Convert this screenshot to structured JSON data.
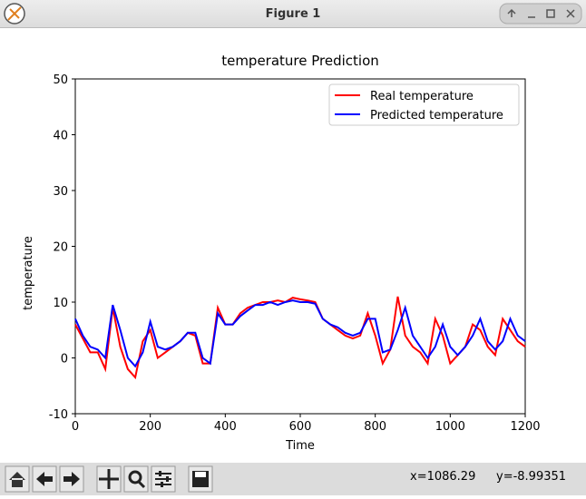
{
  "window": {
    "title": "Figure 1",
    "status_x": "x=1086.29",
    "status_y": "y=-8.99351"
  },
  "chart_data": {
    "type": "line",
    "title": "temperature Prediction",
    "x_label": "Time",
    "y_label": "temperature",
    "x": [
      0,
      20,
      40,
      60,
      80,
      100,
      120,
      140,
      160,
      180,
      200,
      220,
      240,
      260,
      280,
      300,
      320,
      340,
      360,
      380,
      400,
      420,
      440,
      460,
      480,
      500,
      520,
      540,
      560,
      580,
      600,
      620,
      640,
      660,
      680,
      700,
      720,
      740,
      760,
      780,
      800,
      820,
      840,
      860,
      880,
      900,
      920,
      940,
      960,
      980,
      1000,
      1020,
      1040,
      1060,
      1080,
      1100,
      1120,
      1140,
      1160,
      1180,
      1200
    ],
    "series": [
      {
        "name": "Real temperature",
        "color": "#ff0000",
        "values": [
          6,
          3.5,
          1,
          1,
          -2,
          9,
          2,
          -2,
          -3.5,
          3,
          5,
          0,
          1,
          2,
          3,
          4.5,
          4,
          -1,
          -1,
          9,
          6,
          6,
          8,
          9,
          9.5,
          10,
          10,
          10.3,
          10,
          10.8,
          10.5,
          10.3,
          10,
          7,
          6,
          5,
          4,
          3.5,
          4,
          8,
          4,
          -1,
          1.5,
          11,
          4,
          2,
          1,
          -1,
          7,
          4,
          -1,
          0.5,
          2,
          6,
          5,
          2,
          0.5,
          7,
          5,
          3,
          2
        ]
      },
      {
        "name": "Predicted temperature",
        "color": "#0000ff",
        "values": [
          7,
          4,
          2,
          1.5,
          0,
          9.5,
          5,
          0,
          -1.5,
          1,
          6.5,
          2,
          1.5,
          2,
          3,
          4.5,
          4.5,
          0,
          -1,
          8,
          6,
          6,
          7.5,
          8.5,
          9.5,
          9.5,
          10,
          9.5,
          10,
          10.3,
          10,
          10,
          9.7,
          7,
          6,
          5.5,
          4.5,
          4,
          4.5,
          7,
          7,
          1,
          1.5,
          5,
          9,
          4,
          2,
          0,
          2,
          6,
          2,
          0.5,
          2,
          4,
          7,
          3,
          1.5,
          3,
          7,
          4,
          3
        ]
      }
    ],
    "xlim": [
      0,
      1200
    ],
    "xticks": [
      0,
      200,
      400,
      600,
      800,
      1000,
      1200
    ],
    "ylim": [
      -10,
      50
    ],
    "yticks": [
      -10,
      0,
      10,
      20,
      30,
      40,
      50
    ],
    "legend": "upper right"
  }
}
